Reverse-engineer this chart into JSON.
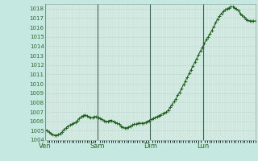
{
  "title": "",
  "bg_color": "#c5e8e0",
  "plot_bg_color": "#d4ece4",
  "grid_color_minor": "#c0d8d0",
  "grid_color_major": "#a8c8be",
  "line_color": "#1a5c1a",
  "marker_color": "#1a5c1a",
  "ylim": [
    1004,
    1018.5
  ],
  "yticks": [
    1004,
    1005,
    1006,
    1007,
    1008,
    1009,
    1010,
    1011,
    1012,
    1013,
    1014,
    1015,
    1016,
    1017,
    1018
  ],
  "xtick_labels": [
    "Ven",
    "Sam",
    "Dim",
    "Lun"
  ],
  "xtick_positions": [
    0,
    24,
    48,
    72
  ],
  "total_hours": 96,
  "values": [
    1005.1,
    1005.0,
    1004.9,
    1004.7,
    1004.6,
    1004.5,
    1004.5,
    1004.6,
    1004.7,
    1004.9,
    1005.1,
    1005.3,
    1005.5,
    1005.6,
    1005.7,
    1005.8,
    1005.9,
    1006.1,
    1006.3,
    1006.5,
    1006.6,
    1006.7,
    1006.6,
    1006.5,
    1006.4,
    1006.4,
    1006.5,
    1006.5,
    1006.4,
    1006.3,
    1006.2,
    1006.1,
    1006.0,
    1006.0,
    1006.1,
    1006.1,
    1006.0,
    1005.9,
    1005.8,
    1005.7,
    1005.5,
    1005.4,
    1005.3,
    1005.3,
    1005.4,
    1005.5,
    1005.6,
    1005.7,
    1005.7,
    1005.8,
    1005.8,
    1005.8,
    1005.8,
    1005.9,
    1006.0,
    1006.1,
    1006.2,
    1006.3,
    1006.4,
    1006.5,
    1006.6,
    1006.7,
    1006.8,
    1006.9,
    1007.0,
    1007.2,
    1007.5,
    1007.8,
    1008.1,
    1008.4,
    1008.8,
    1009.1,
    1009.5,
    1009.9,
    1010.3,
    1010.7,
    1011.1,
    1011.5,
    1011.9,
    1012.3,
    1012.7,
    1013.1,
    1013.5,
    1013.9,
    1014.3,
    1014.7,
    1015.0,
    1015.3,
    1015.7,
    1016.1,
    1016.5,
    1016.9,
    1017.2,
    1017.5,
    1017.7,
    1017.9,
    1018.0,
    1018.1,
    1018.2,
    1018.2,
    1018.1,
    1018.0,
    1017.8,
    1017.5,
    1017.3,
    1017.1,
    1016.9,
    1016.8,
    1016.7,
    1016.7,
    1016.7,
    1016.7
  ]
}
